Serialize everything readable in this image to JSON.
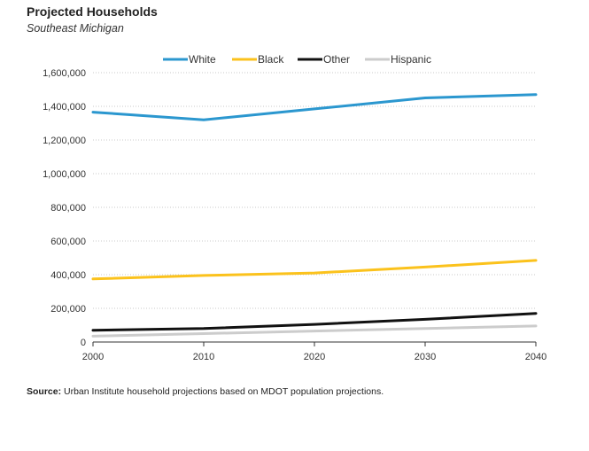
{
  "header": {
    "title": "Projected Households",
    "subtitle": "Southeast Michigan"
  },
  "footer": {
    "source_label": "Source:",
    "source_text": " Urban Institute household projections based on MDOT population projections."
  },
  "chart_data": {
    "type": "line",
    "title": "Projected Households",
    "subtitle": "Southeast Michigan",
    "xlabel": "",
    "ylabel": "",
    "x": [
      2000,
      2010,
      2020,
      2030,
      2040
    ],
    "x_tick_labels": [
      "2000",
      "2010",
      "2020",
      "2030",
      "2040"
    ],
    "ylim": [
      0,
      1600000
    ],
    "y_ticks": [
      0,
      200000,
      400000,
      600000,
      800000,
      1000000,
      1200000,
      1400000,
      1600000
    ],
    "y_tick_labels": [
      "0",
      "200,000",
      "400,000",
      "600,000",
      "800,000",
      "1,000,000",
      "1,200,000",
      "1,400,000",
      "1,600,000"
    ],
    "grid": true,
    "legend_position": "top-center",
    "series": [
      {
        "name": "White",
        "color": "#2b97cf",
        "values": [
          1365000,
          1320000,
          1385000,
          1450000,
          1470000
        ]
      },
      {
        "name": "Black",
        "color": "#fbc21c",
        "values": [
          375000,
          395000,
          410000,
          445000,
          485000
        ]
      },
      {
        "name": "Other",
        "color": "#111111",
        "values": [
          70000,
          80000,
          105000,
          135000,
          170000
        ]
      },
      {
        "name": "Hispanic",
        "color": "#cccccc",
        "values": [
          35000,
          50000,
          65000,
          80000,
          95000
        ]
      }
    ]
  }
}
